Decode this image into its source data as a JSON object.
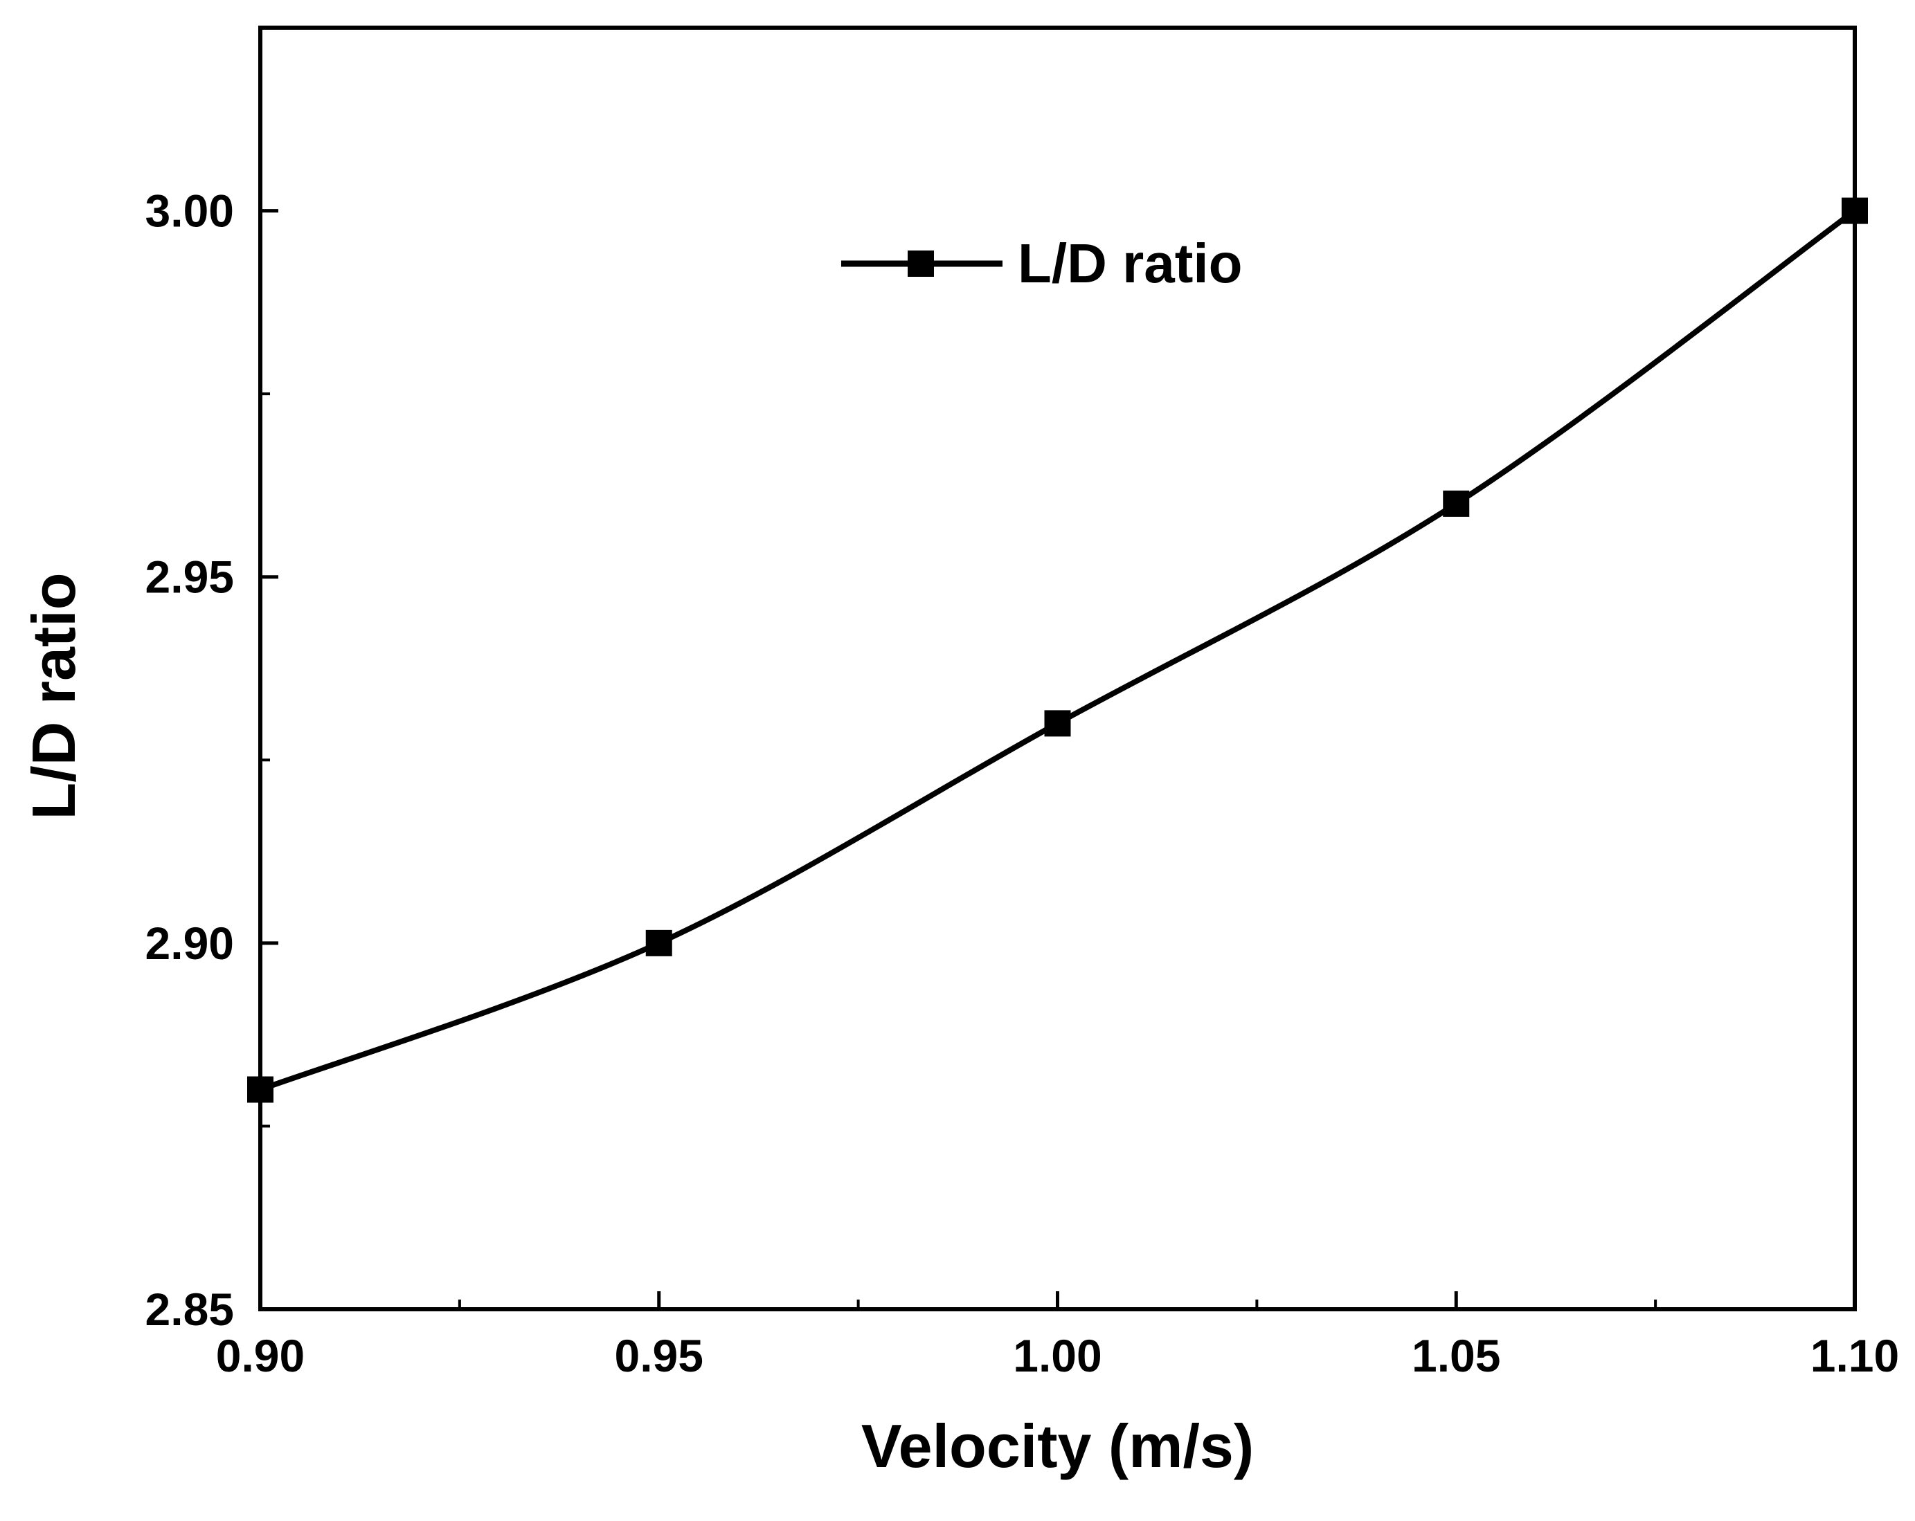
{
  "chart_data": {
    "type": "line",
    "title": "",
    "xlabel": "Velocity (m/s)",
    "ylabel": "L/D ratio",
    "xlim": [
      0.9,
      1.1
    ],
    "ylim": [
      2.85,
      3.025
    ],
    "x_ticks": [
      "0.90",
      "0.95",
      "1.00",
      "1.05",
      "1.10"
    ],
    "x_tick_values": [
      0.9,
      0.95,
      1.0,
      1.05,
      1.1
    ],
    "y_ticks": [
      "2.85",
      "2.90",
      "2.95",
      "3.00"
    ],
    "y_tick_values": [
      2.85,
      2.9,
      2.95,
      3.0
    ],
    "grid": false,
    "legend_position": "top-center",
    "series": [
      {
        "name": "L/D ratio",
        "marker": "square",
        "color": "#000000",
        "x": [
          0.9,
          0.95,
          1.0,
          1.05,
          1.1
        ],
        "values": [
          2.88,
          2.9,
          2.93,
          2.96,
          3.0
        ]
      }
    ]
  }
}
